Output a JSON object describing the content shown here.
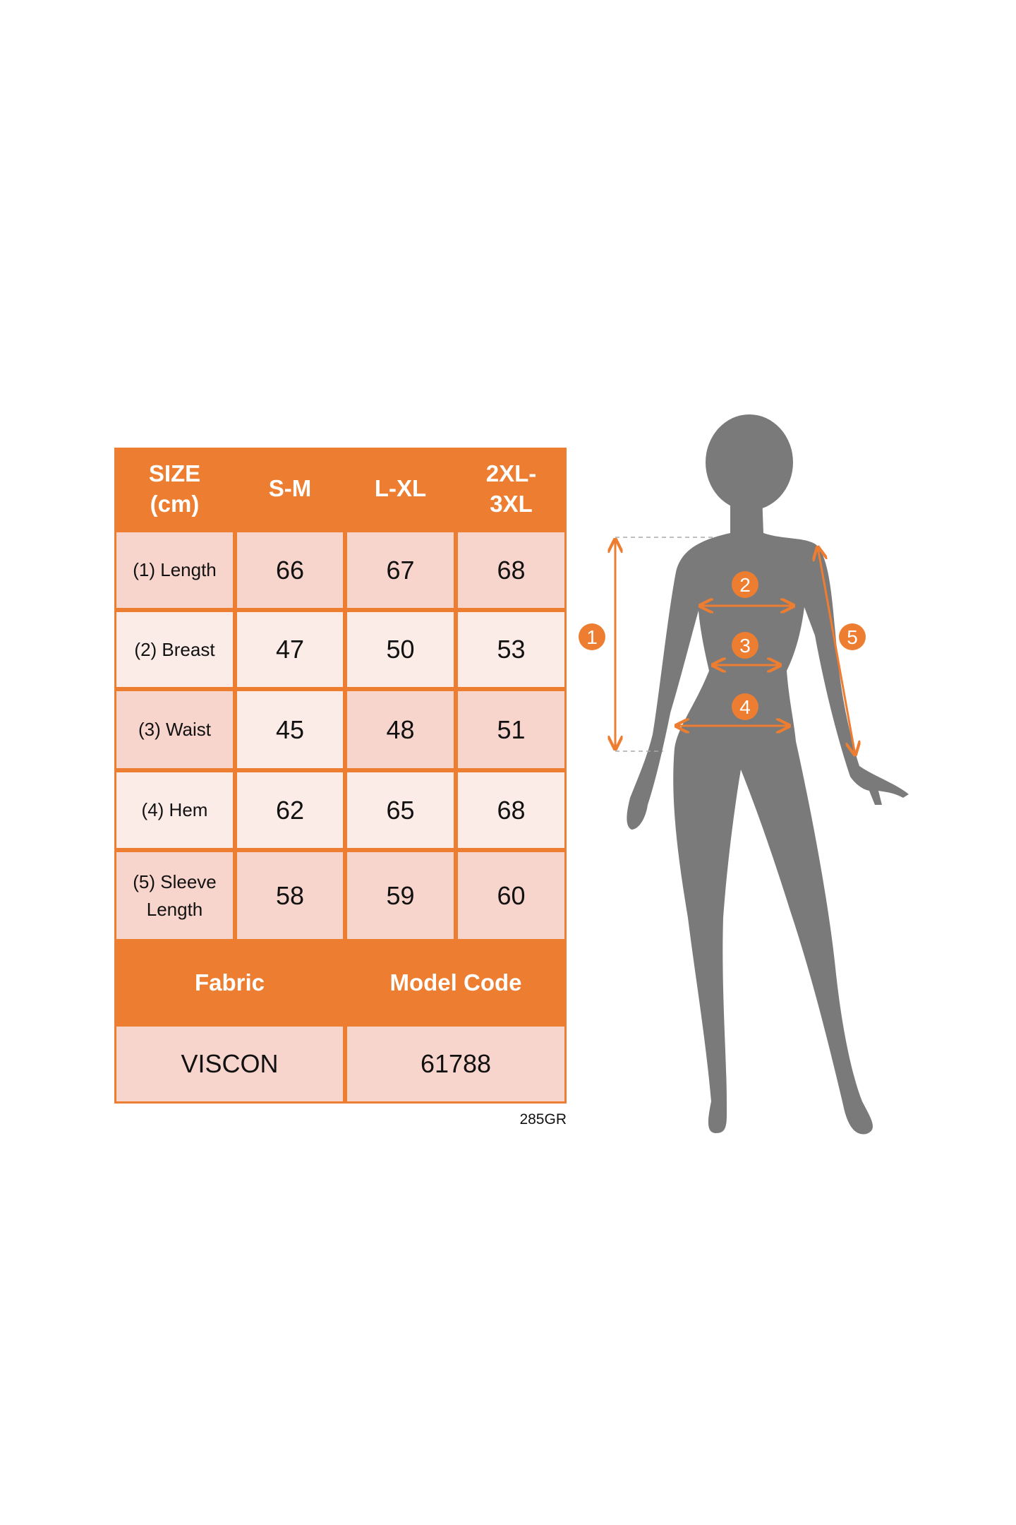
{
  "size_chart": {
    "headers": [
      "SIZE\n(cm)",
      "S-M",
      "L-XL",
      "2XL-\n3XL"
    ],
    "rows": [
      {
        "label": "(1) Length",
        "values": [
          "66",
          "67",
          "68"
        ]
      },
      {
        "label": "(2) Breast",
        "values": [
          "47",
          "50",
          "53"
        ]
      },
      {
        "label": "(3) Waist",
        "values": [
          "45",
          "48",
          "51"
        ]
      },
      {
        "label": "(4) Hem",
        "values": [
          "62",
          "65",
          "68"
        ]
      },
      {
        "label": "(5) Sleeve\nLength",
        "values": [
          "58",
          "59",
          "60"
        ]
      }
    ],
    "info_headers": [
      "Fabric",
      "Model Code"
    ],
    "info_values": [
      "VISCON",
      "61788"
    ],
    "code_note": "285GR"
  },
  "figure": {
    "markers": [
      "1",
      "2",
      "3",
      "4",
      "5"
    ]
  },
  "colors": {
    "accent": "#ED7D31",
    "cell_dark": "#F8D5CC",
    "cell_light": "#FCECE8",
    "silhouette": "#7A7A7A"
  }
}
